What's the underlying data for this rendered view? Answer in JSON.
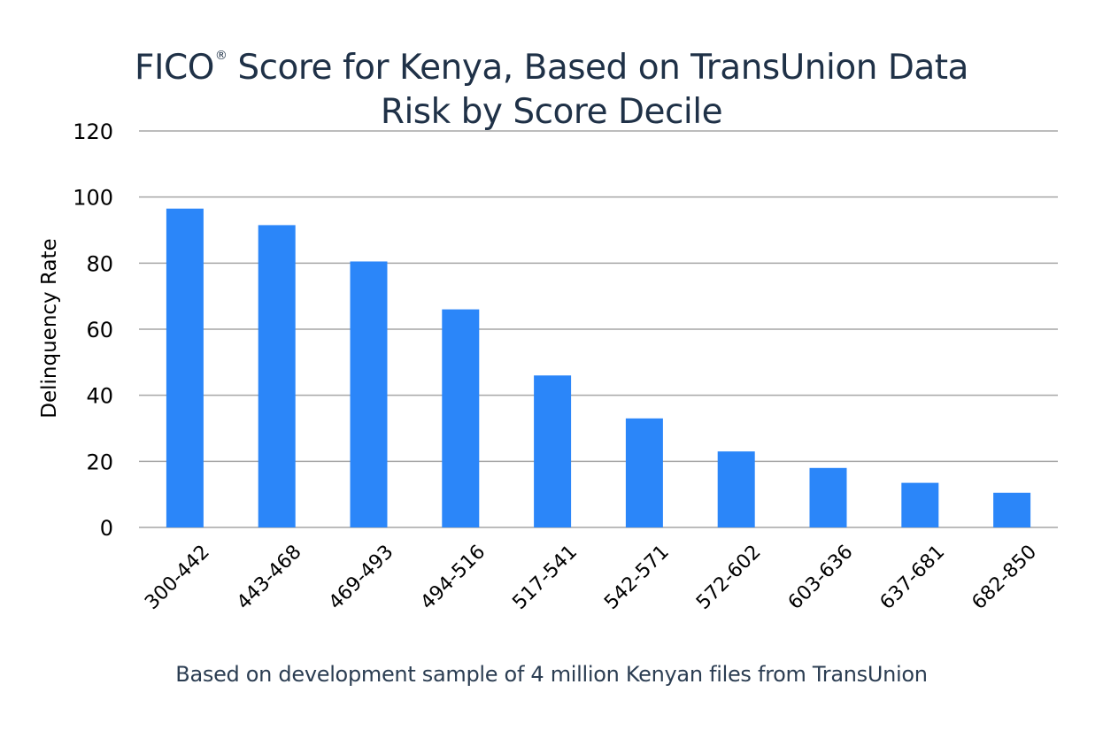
{
  "title_line1_prefix": "FICO",
  "title_line1_mark": "®",
  "title_line1_suffix": " Score for Kenya, Based on TransUnion Data",
  "title_line2": "Risk by Score Decile",
  "footnote": "Based on development sample of 4 million Kenyan files from TransUnion",
  "colors": {
    "bar": "#2b86f9",
    "grid": "#a6a6a6",
    "text": "#000000",
    "title": "#1f3147"
  },
  "chart_data": {
    "type": "bar",
    "title": "FICO® Score for Kenya, Based on TransUnion Data Risk by Score Decile",
    "xlabel": "",
    "ylabel": "Delinquency Rate",
    "ylim": [
      0,
      120
    ],
    "yticks": [
      0,
      20,
      40,
      60,
      80,
      100,
      120
    ],
    "grid": true,
    "categories": [
      "300-442",
      "443-468",
      "469-493",
      "494-516",
      "517-541",
      "542-571",
      "572-602",
      "603-636",
      "637-681",
      "682-850"
    ],
    "values": [
      96.5,
      91.5,
      80.5,
      66,
      46,
      33,
      23,
      18,
      13.5,
      10.5
    ]
  }
}
